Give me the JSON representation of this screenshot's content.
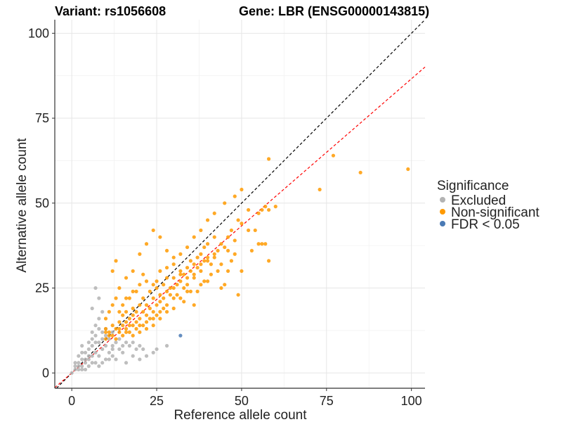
{
  "chart_data": {
    "type": "scatter",
    "title_left": "Variant: rs1056608",
    "title_right": "Gene: LBR (ENSG00000143815)",
    "xlabel": "Reference allele count",
    "ylabel": "Alternative allele count",
    "xlim": [
      -5,
      104
    ],
    "ylim": [
      -4.5,
      104
    ],
    "xticks": [
      0,
      25,
      50,
      75,
      100
    ],
    "yticks": [
      0,
      25,
      50,
      75,
      100
    ],
    "grid": true,
    "reference_line": {
      "slope": 1,
      "intercept": 0,
      "style": "dashed",
      "color": "#000000"
    },
    "fit_line": {
      "slope": 0.866,
      "intercept": 0,
      "style": "dashed",
      "color": "#ff0000"
    },
    "legend": {
      "title": "Significance",
      "position": "right",
      "entries": [
        {
          "label": "Excluded",
          "color": "#b3b3b3"
        },
        {
          "label": "Non-significant",
          "color": "#ff9a00"
        },
        {
          "label": "FDR < 0.05",
          "color": "#4a7ab5"
        }
      ]
    },
    "series": [
      {
        "name": "Excluded",
        "color": "#b3b3b3",
        "points": [
          [
            0,
            0
          ],
          [
            1,
            2
          ],
          [
            2,
            1
          ],
          [
            2,
            3
          ],
          [
            1,
            1
          ],
          [
            3,
            2
          ],
          [
            3,
            4
          ],
          [
            4,
            3
          ],
          [
            2,
            5
          ],
          [
            4,
            6
          ],
          [
            5,
            2
          ],
          [
            5,
            4
          ],
          [
            6,
            5
          ],
          [
            4,
            1
          ],
          [
            6,
            8
          ],
          [
            5,
            7
          ],
          [
            7,
            3
          ],
          [
            7,
            6
          ],
          [
            3,
            6
          ],
          [
            8,
            5
          ],
          [
            8,
            9
          ],
          [
            6,
            10
          ],
          [
            7,
            11
          ],
          [
            9,
            7
          ],
          [
            10,
            4
          ],
          [
            9,
            12
          ],
          [
            8,
            13
          ],
          [
            10,
            11
          ],
          [
            6,
            12
          ],
          [
            5,
            9
          ],
          [
            3,
            8
          ],
          [
            9,
            3
          ],
          [
            11,
            6
          ],
          [
            12,
            5
          ],
          [
            13,
            4
          ],
          [
            14,
            7
          ],
          [
            15,
            6
          ],
          [
            16,
            3
          ],
          [
            18,
            5
          ],
          [
            20,
            4
          ],
          [
            22,
            5
          ],
          [
            24,
            6
          ],
          [
            19,
            7
          ],
          [
            17,
            8
          ],
          [
            12,
            8
          ],
          [
            13,
            9
          ],
          [
            11,
            10
          ],
          [
            10,
            13
          ],
          [
            12,
            12
          ],
          [
            7,
            14
          ],
          [
            8,
            16
          ],
          [
            6,
            19
          ],
          [
            7,
            25
          ],
          [
            8,
            22
          ],
          [
            9,
            18
          ],
          [
            14,
            10
          ],
          [
            16,
            9
          ],
          [
            21,
            7
          ],
          [
            25,
            7
          ],
          [
            28,
            8
          ],
          [
            2,
            2
          ],
          [
            3,
            1
          ],
          [
            4,
            4
          ],
          [
            1,
            3
          ],
          [
            5,
            5
          ],
          [
            6,
            3
          ],
          [
            7,
            9
          ],
          [
            8,
            2
          ],
          [
            10,
            8
          ],
          [
            9,
            10
          ],
          [
            12,
            7
          ],
          [
            11,
            4
          ],
          [
            15,
            8
          ],
          [
            18,
            9
          ],
          [
            20,
            8
          ]
        ]
      },
      {
        "name": "Non-significant",
        "color": "#ff9a00",
        "points": [
          [
            10,
            10
          ],
          [
            10,
            13
          ],
          [
            11,
            12
          ],
          [
            12,
            11
          ],
          [
            12,
            14
          ],
          [
            13,
            13
          ],
          [
            14,
            12
          ],
          [
            14,
            15
          ],
          [
            15,
            14
          ],
          [
            15,
            17
          ],
          [
            16,
            15
          ],
          [
            16,
            18
          ],
          [
            17,
            14
          ],
          [
            17,
            16
          ],
          [
            18,
            17
          ],
          [
            18,
            19
          ],
          [
            19,
            15
          ],
          [
            19,
            18
          ],
          [
            20,
            16
          ],
          [
            20,
            20
          ],
          [
            21,
            18
          ],
          [
            21,
            22
          ],
          [
            22,
            17
          ],
          [
            22,
            20
          ],
          [
            23,
            19
          ],
          [
            23,
            24
          ],
          [
            24,
            18
          ],
          [
            24,
            22
          ],
          [
            25,
            20
          ],
          [
            25,
            25
          ],
          [
            26,
            21
          ],
          [
            26,
            23
          ],
          [
            27,
            22
          ],
          [
            27,
            26
          ],
          [
            28,
            24
          ],
          [
            28,
            28
          ],
          [
            29,
            23
          ],
          [
            29,
            25
          ],
          [
            30,
            25
          ],
          [
            30,
            28
          ],
          [
            31,
            26
          ],
          [
            32,
            27
          ],
          [
            32,
            30
          ],
          [
            33,
            25
          ],
          [
            33,
            29
          ],
          [
            34,
            28
          ],
          [
            34,
            31
          ],
          [
            35,
            30
          ],
          [
            35,
            33
          ],
          [
            36,
            29
          ],
          [
            36,
            32
          ],
          [
            37,
            31
          ],
          [
            37,
            34
          ],
          [
            38,
            30
          ],
          [
            38,
            35
          ],
          [
            39,
            33
          ],
          [
            39,
            37
          ],
          [
            40,
            34
          ],
          [
            40,
            38
          ],
          [
            41,
            32
          ],
          [
            42,
            35
          ],
          [
            42,
            40
          ],
          [
            43,
            36
          ],
          [
            44,
            38
          ],
          [
            45,
            37
          ],
          [
            46,
            40
          ],
          [
            47,
            42
          ],
          [
            48,
            39
          ],
          [
            49,
            45
          ],
          [
            50,
            44
          ],
          [
            52,
            48
          ],
          [
            54,
            42
          ],
          [
            55,
            47
          ],
          [
            56,
            48
          ],
          [
            57,
            49
          ],
          [
            58,
            48
          ],
          [
            55,
            38
          ],
          [
            57,
            38
          ],
          [
            53,
            36
          ],
          [
            47,
            33
          ],
          [
            46,
            30
          ],
          [
            49,
            23
          ],
          [
            44,
            25
          ],
          [
            40,
            27
          ],
          [
            37,
            24
          ],
          [
            36,
            20
          ],
          [
            32,
            22
          ],
          [
            30,
            19
          ],
          [
            28,
            18
          ],
          [
            26,
            16
          ],
          [
            24,
            14
          ],
          [
            22,
            13
          ],
          [
            20,
            12
          ],
          [
            18,
            11
          ],
          [
            16,
            12
          ],
          [
            13,
            33
          ],
          [
            12,
            30
          ],
          [
            14,
            25
          ],
          [
            16,
            28
          ],
          [
            18,
            30
          ],
          [
            20,
            35
          ],
          [
            22,
            38
          ],
          [
            24,
            42
          ],
          [
            26,
            40
          ],
          [
            28,
            36
          ],
          [
            30,
            32
          ],
          [
            32,
            29
          ],
          [
            25,
            27
          ],
          [
            21,
            29
          ],
          [
            19,
            24
          ],
          [
            17,
            22
          ],
          [
            15,
            20
          ],
          [
            13,
            22
          ],
          [
            11,
            18
          ],
          [
            10,
            16
          ],
          [
            12,
            20
          ],
          [
            14,
            18
          ],
          [
            16,
            22
          ],
          [
            18,
            24
          ],
          [
            20,
            26
          ],
          [
            22,
            27
          ],
          [
            24,
            26
          ],
          [
            26,
            30
          ],
          [
            28,
            31
          ],
          [
            30,
            34
          ],
          [
            32,
            35
          ],
          [
            34,
            37
          ],
          [
            36,
            40
          ],
          [
            38,
            42
          ],
          [
            40,
            45
          ],
          [
            42,
            47
          ],
          [
            45,
            50
          ],
          [
            48,
            52
          ],
          [
            50,
            54
          ],
          [
            58,
            63
          ],
          [
            77,
            64
          ],
          [
            85,
            59
          ],
          [
            99,
            60
          ],
          [
            73,
            54
          ],
          [
            60,
            49
          ],
          [
            56,
            38
          ],
          [
            58,
            33
          ],
          [
            50,
            30
          ],
          [
            45,
            26
          ],
          [
            43,
            30
          ],
          [
            41,
            29
          ],
          [
            39,
            27
          ],
          [
            35,
            24
          ],
          [
            33,
            21
          ],
          [
            31,
            23
          ],
          [
            27,
            19
          ],
          [
            25,
            17
          ],
          [
            23,
            16
          ],
          [
            21,
            14
          ],
          [
            19,
            13
          ],
          [
            17,
            12
          ],
          [
            15,
            11
          ],
          [
            13,
            10
          ],
          [
            11,
            11
          ],
          [
            10,
            12
          ],
          [
            14,
            13
          ],
          [
            16,
            13
          ],
          [
            18,
            14
          ],
          [
            20,
            14
          ],
          [
            22,
            15
          ],
          [
            24,
            16
          ],
          [
            26,
            18
          ],
          [
            28,
            20
          ],
          [
            30,
            22
          ],
          [
            34,
            24
          ],
          [
            38,
            26
          ],
          [
            44,
            32
          ],
          [
            48,
            35
          ],
          [
            52,
            42
          ],
          [
            46,
            36
          ],
          [
            40,
            33
          ],
          [
            36,
            28
          ],
          [
            34,
            26
          ],
          [
            38,
            32
          ],
          [
            42,
            34
          ]
        ]
      },
      {
        "name": "FDR < 0.05",
        "color": "#4a7ab5",
        "points": [
          [
            32,
            11
          ]
        ]
      }
    ]
  }
}
